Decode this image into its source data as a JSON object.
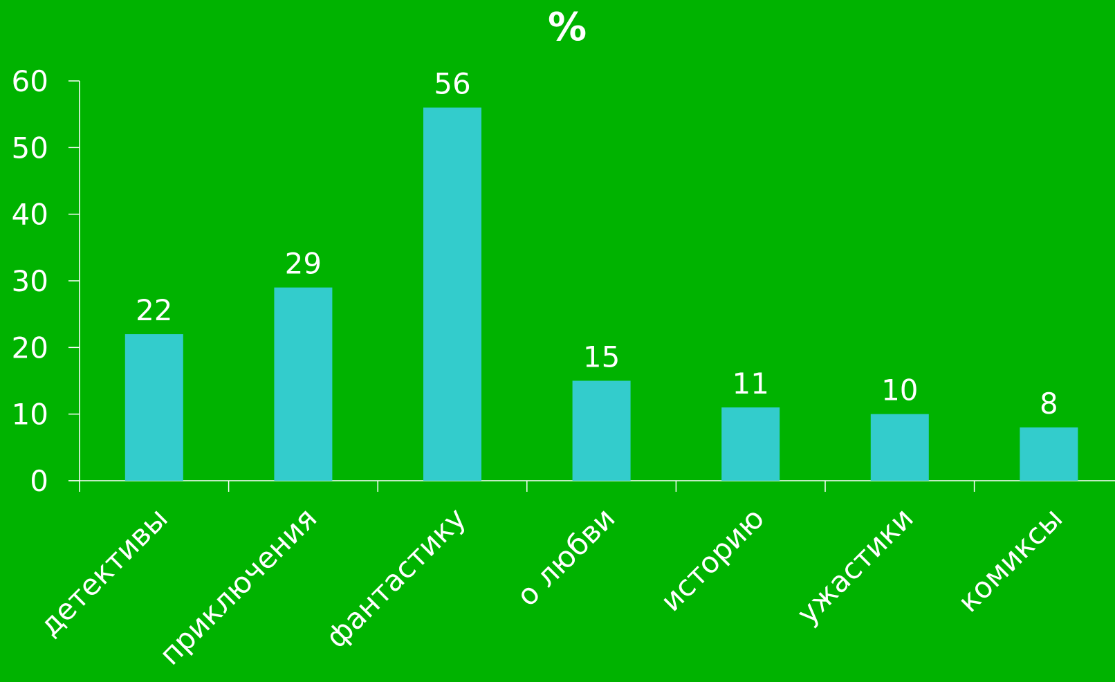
{
  "chart_data": {
    "type": "bar",
    "title": "%",
    "categories": [
      "детективы",
      "приключения",
      "фантастику",
      "о любви",
      "историю",
      "ужастики",
      "комиксы"
    ],
    "values": [
      22,
      29,
      56,
      15,
      11,
      10,
      8
    ],
    "ylim": [
      0,
      60
    ],
    "yticks": [
      0,
      10,
      20,
      30,
      40,
      50,
      60
    ],
    "xlabel": "",
    "ylabel": "",
    "grid": false,
    "legend": "none",
    "data_labels": true,
    "colors": {
      "background": "#00b300",
      "bar": "#33cccc",
      "text": "#ffffff",
      "axis": "#ffffff"
    }
  }
}
